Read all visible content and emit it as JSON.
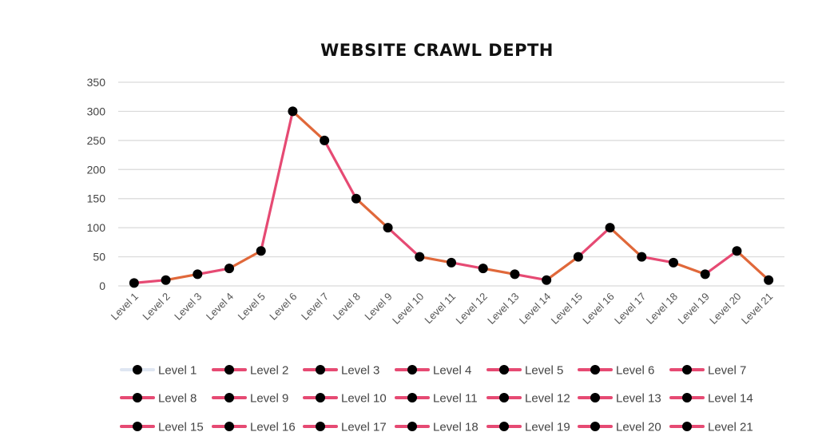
{
  "chart_data": {
    "type": "line",
    "title": "WEBSITE CRAWL DEPTH",
    "xlabel": "",
    "ylabel": "",
    "ylim": [
      0,
      350
    ],
    "yticks": [
      0,
      50,
      100,
      150,
      200,
      250,
      300,
      350
    ],
    "grid": true,
    "legend_position": "bottom",
    "categories": [
      "Level 1",
      "Level 2",
      "Level 3",
      "Level 4",
      "Level 5",
      "Level 6",
      "Level 7",
      "Level 8",
      "Level 9",
      "Level 10",
      "Level 11",
      "Level 12",
      "Level 13",
      "Level 14",
      "Level 15",
      "Level 16",
      "Level 17",
      "Level 18",
      "Level 19",
      "Level 20",
      "Level 21"
    ],
    "values": [
      5,
      10,
      20,
      30,
      60,
      300,
      250,
      150,
      100,
      50,
      40,
      30,
      20,
      10,
      50,
      100,
      50,
      40,
      20,
      60,
      10
    ],
    "legend_entries": [
      "Level 1",
      "Level 2",
      "Level 3",
      "Level 4",
      "Level 5",
      "Level 6",
      "Level 7",
      "Level 8",
      "Level 9",
      "Level 10",
      "Level 11",
      "Level 12",
      "Level 13",
      "Level 14",
      "Level 15",
      "Level 16",
      "Level 17",
      "Level 18",
      "Level 19",
      "Level 20",
      "Level 21"
    ],
    "colors": {
      "line_primary": "#e64a73",
      "line_secondary": "#e0683a",
      "marker": "#000000",
      "grid": "#d9d9d9",
      "legend_first_line": "#dfe6f2"
    }
  }
}
